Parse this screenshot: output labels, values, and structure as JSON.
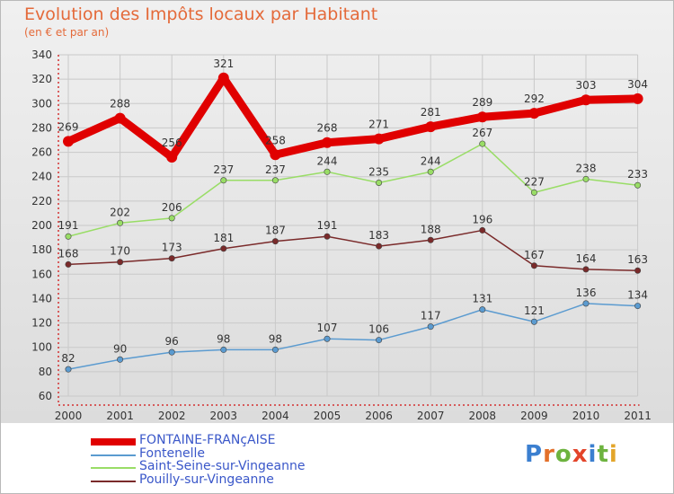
{
  "title": "Evolution des Impôts locaux par Habitant",
  "subtitle": "(en € et par an)",
  "logo": {
    "letters": [
      "P",
      "r",
      "o",
      "x",
      "i",
      "t",
      "i"
    ],
    "colors": [
      "#3b7fd0",
      "#e3702a",
      "#6db33f",
      "#e3442a",
      "#3b7fd0",
      "#6db33f",
      "#e3a52a"
    ]
  },
  "chart_data": {
    "type": "line",
    "x": [
      "2000",
      "2001",
      "2002",
      "2003",
      "2004",
      "2005",
      "2006",
      "2007",
      "2008",
      "2009",
      "2010",
      "2011"
    ],
    "ylim": [
      60,
      340
    ],
    "yticks": [
      "60",
      "80",
      "100",
      "120",
      "140",
      "160",
      "180",
      "200",
      "220",
      "240",
      "260",
      "280",
      "300",
      "320",
      "340"
    ],
    "grid": true,
    "legend_position": "bottom-left",
    "series": [
      {
        "name": "FONTAINE-FRANçAISE",
        "color": "#e00000",
        "width": 9,
        "values": [
          269,
          288,
          256,
          321,
          258,
          268,
          271,
          281,
          289,
          292,
          303,
          304
        ],
        "labels": [
          "269",
          "288",
          "256",
          "321",
          "258",
          "268",
          "271",
          "281",
          "289",
          "292",
          "303",
          "304"
        ]
      },
      {
        "name": "Fontenelle",
        "color": "#5b9bd0",
        "width": 1.5,
        "values": [
          82,
          90,
          96,
          98,
          98,
          107,
          106,
          117,
          131,
          121,
          136,
          134
        ],
        "labels": [
          "82",
          "90",
          "96",
          "98",
          "98",
          "107",
          "106",
          "117",
          "131",
          "121",
          "136",
          "134"
        ]
      },
      {
        "name": "Saint-Seine-sur-Vingeanne",
        "color": "#99dd66",
        "width": 1.5,
        "values": [
          191,
          202,
          206,
          237,
          237,
          244,
          235,
          244,
          267,
          227,
          238,
          233
        ],
        "labels": [
          "191",
          "202",
          "206",
          "237",
          "237",
          "244",
          "235",
          "244",
          "267",
          "227",
          "238",
          "233"
        ]
      },
      {
        "name": "Pouilly-sur-Vingeanne",
        "color": "#7a2a2a",
        "width": 1.5,
        "values": [
          168,
          170,
          173,
          181,
          187,
          191,
          183,
          188,
          196,
          167,
          164,
          163
        ],
        "labels": [
          "168",
          "170",
          "173",
          "181",
          "187",
          "191",
          "183",
          "188",
          "196",
          "167",
          "164",
          "163"
        ]
      }
    ]
  }
}
